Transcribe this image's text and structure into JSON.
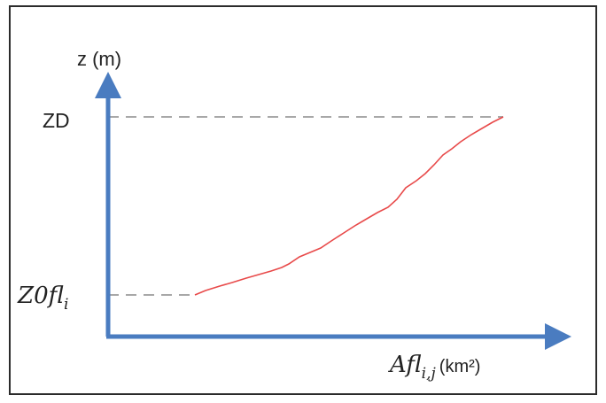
{
  "diagram": {
    "y_axis_label": "z (m)",
    "x_axis_label": {
      "base": "Afl",
      "subscript": "i,j",
      "unit_text": "(km²)"
    },
    "level_labels": {
      "top": "ZD",
      "bottom": {
        "base": "Z0fl",
        "subscript": "i"
      }
    },
    "colors": {
      "axis": "#4a7cc0",
      "curve": "#e84a4a",
      "dashed_guides": "#a8a8a8",
      "frame": "#2b2b2b",
      "text": "#222222"
    }
  }
}
